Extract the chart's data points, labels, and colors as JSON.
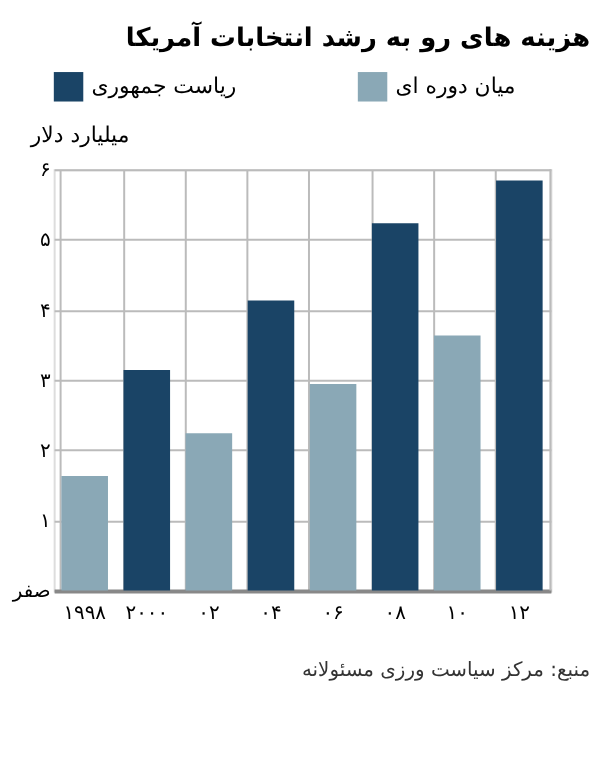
{
  "chart_data": {
    "type": "bar",
    "title": "هزینه های رو به رشد انتخابات آمریکا",
    "ylabel": "میلیارد دلار",
    "categories": [
      "۱۹۹۸",
      "۲۰۰۰",
      "۰۲",
      "۰۴",
      "۰۶",
      "۰۸",
      "۱۰",
      "۱۲"
    ],
    "series": [
      {
        "name": "ریاست جمهوری",
        "color": "#1a4466",
        "values": [
          null,
          3.14,
          null,
          4.13,
          null,
          5.23,
          null,
          5.84
        ]
      },
      {
        "name": "میان دوره ای",
        "color": "#8aa8b6",
        "values": [
          1.63,
          null,
          2.24,
          null,
          2.94,
          null,
          3.63,
          null
        ]
      }
    ],
    "ylim": [
      0,
      6
    ],
    "yticks": [
      {
        "value": 0,
        "label": "صفر"
      },
      {
        "value": 1,
        "label": "۱"
      },
      {
        "value": 2,
        "label": "۲"
      },
      {
        "value": 3,
        "label": "۳"
      },
      {
        "value": 4,
        "label": "۴"
      },
      {
        "value": 5,
        "label": "۵"
      },
      {
        "value": 6,
        "label": "۶"
      }
    ],
    "grid": true,
    "legend": "top",
    "annotations": [
      "منبع: مرکز سیاست ورزی مسئولانه"
    ]
  }
}
